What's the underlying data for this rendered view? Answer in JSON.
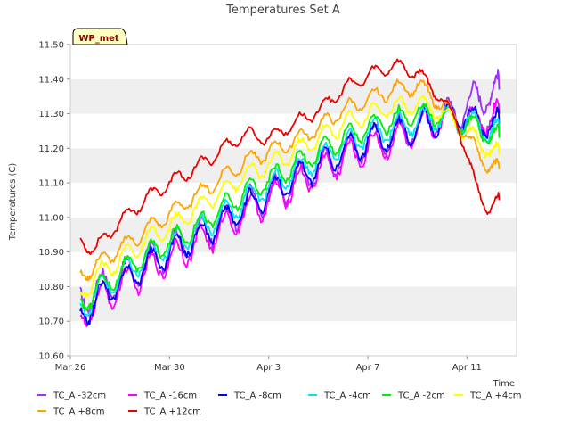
{
  "chart_data": {
    "type": "line",
    "title": "Temperatures Set A",
    "xlabel": "Time",
    "ylabel": "Temperatures (C)",
    "ylim": [
      10.6,
      11.5
    ],
    "xlim": [
      "Mar 26",
      "Apr 13"
    ],
    "yticks": [
      "10.60",
      "10.70",
      "10.80",
      "10.90",
      "11.00",
      "11.10",
      "11.20",
      "11.30",
      "11.40",
      "11.50"
    ],
    "xticks": [
      {
        "label": "Mar 26",
        "day": 0
      },
      {
        "label": "Mar 30",
        "day": 4
      },
      {
        "label": "Apr 3",
        "day": 8
      },
      {
        "label": "Apr 7",
        "day": 12
      },
      {
        "label": "Apr 11",
        "day": 16
      }
    ],
    "grid": true,
    "legend": "bottom",
    "annotation": "WP_met",
    "x": [
      0.4,
      1.0,
      2.0,
      3.0,
      4.0,
      5.0,
      6.0,
      7.0,
      8.0,
      9.0,
      10.0,
      11.0,
      12.0,
      13.0,
      14.0,
      14.8,
      15.6,
      16.3,
      16.9,
      17.3
    ],
    "series": [
      {
        "name": "TC_A -32cm",
        "color": "#9b30ff",
        "values": [
          10.76,
          10.79,
          10.82,
          10.86,
          10.9,
          10.94,
          10.98,
          11.03,
          11.06,
          11.1,
          11.14,
          11.18,
          11.22,
          11.24,
          11.26,
          11.29,
          11.3,
          11.34,
          11.36,
          11.37
        ]
      },
      {
        "name": "TC_A -16cm",
        "color": "#ff00ff",
        "values": [
          10.7,
          10.75,
          10.8,
          10.84,
          10.88,
          10.92,
          10.96,
          11.01,
          11.05,
          11.09,
          11.13,
          11.17,
          11.2,
          11.22,
          11.25,
          11.28,
          11.29,
          11.28,
          11.29,
          11.3
        ]
      },
      {
        "name": "TC_A -8cm",
        "color": "#0000ff",
        "values": [
          10.71,
          10.76,
          10.81,
          10.86,
          10.9,
          10.94,
          10.98,
          11.03,
          11.07,
          11.11,
          11.15,
          11.19,
          11.22,
          11.24,
          11.26,
          11.28,
          11.29,
          11.28,
          11.27,
          11.27
        ]
      },
      {
        "name": "TC_A -4cm",
        "color": "#00e5ee",
        "values": [
          10.73,
          10.78,
          10.83,
          10.88,
          10.92,
          10.96,
          11.0,
          11.05,
          11.09,
          11.13,
          11.17,
          11.21,
          11.24,
          11.26,
          11.28,
          11.29,
          11.28,
          11.27,
          11.25,
          11.25
        ]
      },
      {
        "name": "TC_A -2cm",
        "color": "#00ee00",
        "values": [
          10.74,
          10.79,
          10.84,
          10.89,
          10.93,
          10.97,
          11.02,
          11.07,
          11.11,
          11.15,
          11.19,
          11.23,
          11.26,
          11.28,
          11.3,
          11.3,
          11.28,
          11.26,
          11.24,
          11.23
        ]
      },
      {
        "name": "TC_A +4cm",
        "color": "#ffff00",
        "values": [
          10.77,
          10.83,
          10.88,
          10.93,
          10.97,
          11.02,
          11.07,
          11.12,
          11.15,
          11.19,
          11.23,
          11.27,
          11.3,
          11.32,
          11.33,
          11.31,
          11.27,
          11.23,
          11.2,
          11.18
        ]
      },
      {
        "name": "TC_A +8cm",
        "color": "#ffa500",
        "values": [
          10.83,
          10.86,
          10.91,
          10.96,
          11.01,
          11.06,
          11.11,
          11.16,
          11.19,
          11.22,
          11.26,
          11.31,
          11.34,
          11.37,
          11.38,
          11.34,
          11.28,
          11.2,
          11.15,
          11.14
        ]
      },
      {
        "name": "TC_A +12cm",
        "color": "#ee0000",
        "values": [
          10.93,
          10.91,
          10.99,
          11.05,
          11.1,
          11.14,
          11.19,
          11.24,
          11.23,
          11.27,
          11.31,
          11.37,
          11.41,
          11.44,
          11.42,
          11.36,
          11.28,
          11.1,
          11.02,
          11.05
        ]
      }
    ]
  }
}
